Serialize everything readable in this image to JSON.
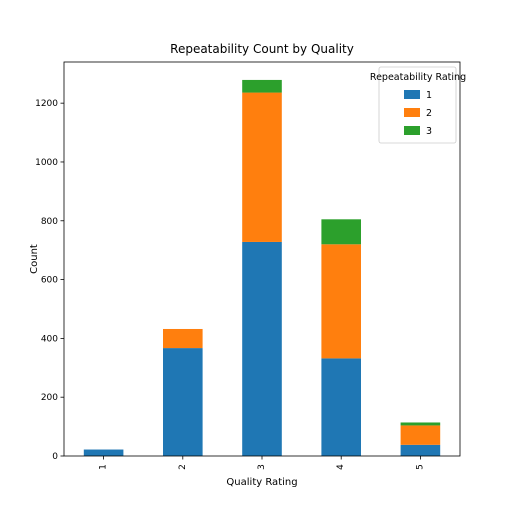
{
  "chart_data": {
    "type": "bar",
    "stacked": true,
    "title": "Repeatability Count by Quality",
    "xlabel": "Quality Rating",
    "ylabel": "Count",
    "categories": [
      "1",
      "2",
      "3",
      "4",
      "5"
    ],
    "series": [
      {
        "name": "1",
        "color": "#1f77b4",
        "values": [
          22,
          367,
          728,
          332,
          38
        ]
      },
      {
        "name": "2",
        "color": "#ff7f0e",
        "values": [
          0,
          65,
          508,
          388,
          66
        ]
      },
      {
        "name": "3",
        "color": "#2ca02c",
        "values": [
          0,
          0,
          43,
          85,
          10
        ]
      }
    ],
    "ylim": [
      0,
      1340
    ],
    "yticks": [
      0,
      200,
      400,
      600,
      800,
      1000,
      1200
    ],
    "ytick_labels": [
      "0",
      "200",
      "400",
      "600",
      "800",
      "1000",
      "1200"
    ],
    "legend": {
      "title": "Repeatability Rating",
      "placement": "upper-right"
    },
    "grid": false
  }
}
